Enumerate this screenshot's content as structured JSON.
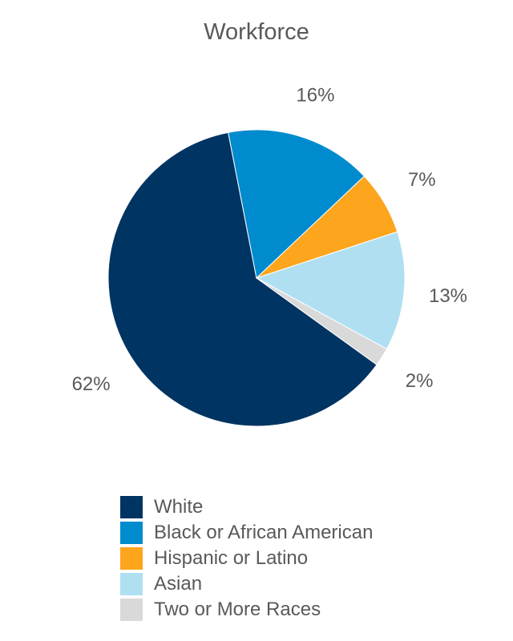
{
  "chart_data": {
    "type": "pie",
    "title": "Workforce",
    "slices": [
      {
        "label": "White",
        "value": 62,
        "display": "62%",
        "color": "#003462"
      },
      {
        "label": "Black or African American",
        "value": 16,
        "display": "16%",
        "color": "#008bcf"
      },
      {
        "label": "Hispanic or Latino",
        "value": 7,
        "display": "7%",
        "color": "#fda51d"
      },
      {
        "label": "Asian",
        "value": 13,
        "display": "13%",
        "color": "#b0dff2"
      },
      {
        "label": "Two or More Races",
        "value": 2,
        "display": "2%",
        "color": "#d9d9d9"
      }
    ],
    "legend_position": "bottom"
  }
}
